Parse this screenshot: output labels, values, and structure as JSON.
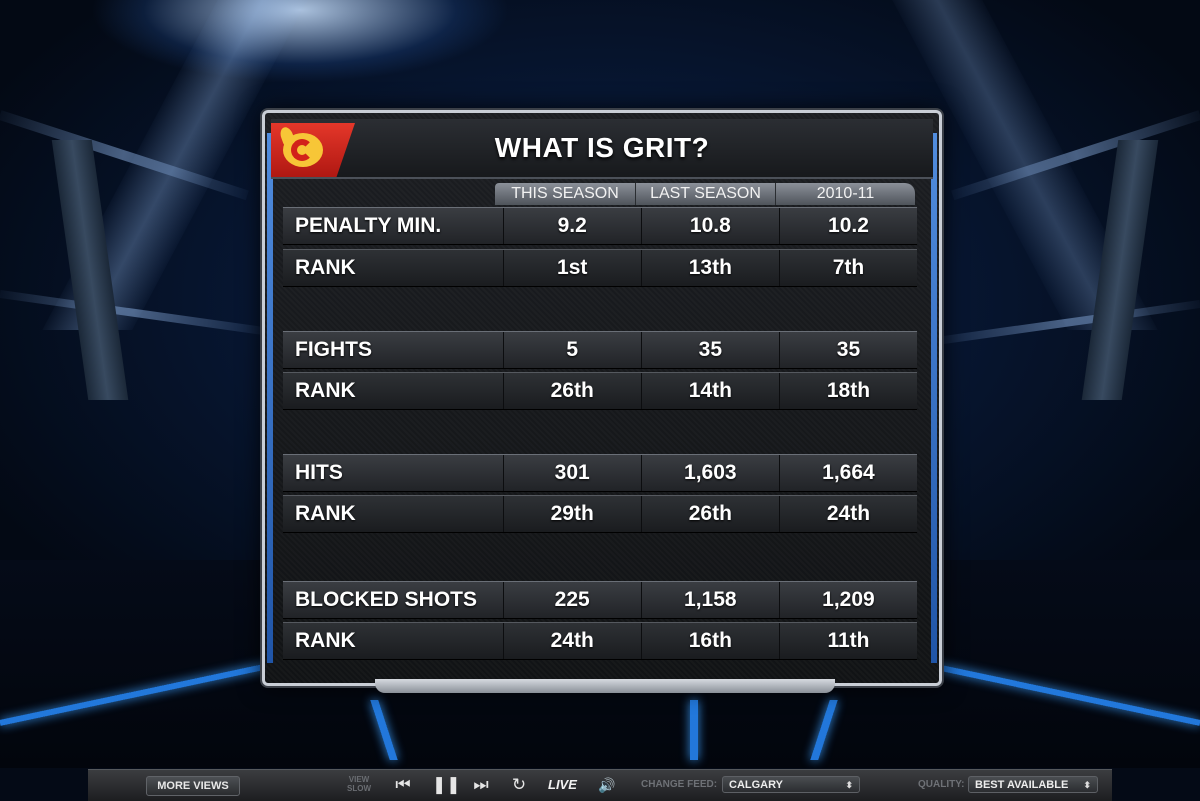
{
  "panel": {
    "title": "WHAT IS GRIT?",
    "logo_icon": "calgary-flames-logo",
    "columns": [
      "THIS SEASON",
      "LAST SEASON",
      "2010-11"
    ],
    "rows": [
      {
        "label": "PENALTY MIN.",
        "values": [
          "9.2",
          "10.8",
          "10.2"
        ],
        "kind": "stat"
      },
      {
        "label": "RANK",
        "values": [
          "1st",
          "13th",
          "7th"
        ],
        "kind": "rank"
      },
      {
        "label": "FIGHTS",
        "values": [
          "5",
          "35",
          "35"
        ],
        "kind": "stat"
      },
      {
        "label": "RANK",
        "values": [
          "26th",
          "14th",
          "18th"
        ],
        "kind": "rank"
      },
      {
        "label": "HITS",
        "values": [
          "301",
          "1,603",
          "1,664"
        ],
        "kind": "stat"
      },
      {
        "label": "RANK",
        "values": [
          "29th",
          "26th",
          "24th"
        ],
        "kind": "rank"
      },
      {
        "label": "BLOCKED SHOTS",
        "values": [
          "225",
          "1,158",
          "1,209"
        ],
        "kind": "stat"
      },
      {
        "label": "RANK",
        "values": [
          "24th",
          "16th",
          "11th"
        ],
        "kind": "rank"
      }
    ]
  },
  "controls": {
    "more_views": "MORE VIEWS",
    "view_slow": "VIEW SLOW",
    "live": "LIVE",
    "change_feed_label": "CHANGE FEED:",
    "change_feed_value": "CALGARY",
    "quality_label": "QUALITY:",
    "quality_value": "BEST AVAILABLE",
    "icons": {
      "rewind": "rewind-icon",
      "pause": "pause-icon",
      "fast_forward": "fast-forward-icon",
      "replay": "replay-icon",
      "volume": "volume-icon",
      "dropdown": "chevron-updown-icon"
    }
  },
  "colors": {
    "accent_blue": "#3f8cff",
    "flames_red": "#d2221a",
    "flames_gold": "#f7c637"
  }
}
